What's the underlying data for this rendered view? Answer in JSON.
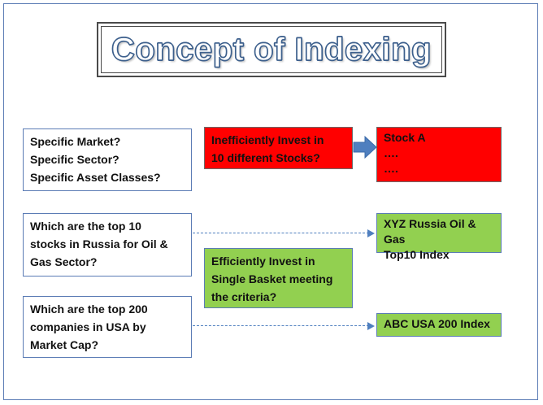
{
  "title": "Concept of Indexing",
  "boxes": {
    "market_questions": [
      "Specific Market?",
      "Specific Sector?",
      "Specific Asset Classes?"
    ],
    "inefficient": [
      "Inefficiently Invest in",
      "10 different Stocks?"
    ],
    "stocks": [
      "Stock A",
      "….",
      "…."
    ],
    "russia_question": [
      "Which are the top 10",
      "stocks in Russia  for Oil &",
      "Gas Sector?"
    ],
    "russia_index": [
      "XYZ Russia Oil & Gas",
      "Top10 Index"
    ],
    "efficient": [
      "Efficiently Invest in",
      "Single Basket meeting",
      "the criteria?"
    ],
    "usa_question": [
      "Which are the top 200",
      "companies in  USA by",
      "Market Cap?"
    ],
    "usa_index": [
      "ABC USA 200 Index"
    ]
  },
  "colors": {
    "red_box": "#ff0000",
    "green_box": "#92d050",
    "border": "#5b7cb5",
    "arrow": "#4f7fbf"
  }
}
